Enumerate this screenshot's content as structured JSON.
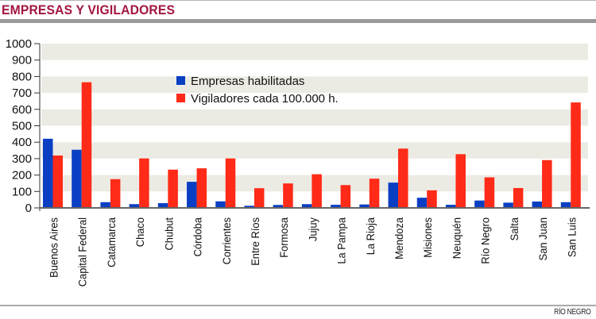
{
  "header": {
    "title": "EMPRESAS Y VIGILADORES"
  },
  "footer": {
    "source": "RÍO NEGRO"
  },
  "colors": {
    "title": "#a3163e",
    "series_blue": "#0a3fc4",
    "series_red": "#ff2a17",
    "band": "#ecebe3"
  },
  "chart_data": {
    "type": "bar",
    "title": "EMPRESAS Y VIGILADORES",
    "xlabel": "",
    "ylabel": "",
    "ylim": [
      0,
      1000
    ],
    "yticks": [
      "0",
      "100",
      "200",
      "300",
      "400",
      "500",
      "600",
      "700",
      "800",
      "900",
      "1000"
    ],
    "grid": "alternating horizontal bands",
    "legend_position": "top-center",
    "categories": [
      "Buenos Aires",
      "Capital Federal",
      "Catamarca",
      "Chaco",
      "Chubut",
      "Córdoba",
      "Corrientes",
      "Entre Ríos",
      "Formosa",
      "Jujuy",
      "La Pampa",
      "La Rioja",
      "Mendoza",
      "Misiones",
      "Neuquén",
      "Río Negro",
      "Salta",
      "San Juan",
      "San Luis"
    ],
    "series": [
      {
        "name": "Empresas habilitadas",
        "color": "#0a3fc4",
        "values": [
          421,
          354,
          35,
          23,
          29,
          159,
          40,
          13,
          18,
          23,
          19,
          21,
          154,
          62,
          19,
          45,
          32,
          39,
          35
        ]
      },
      {
        "name": "Vigiladores cada 100.000 h.",
        "color": "#ff2a17",
        "values": [
          319,
          765,
          175,
          301,
          233,
          241,
          301,
          120,
          149,
          205,
          139,
          178,
          361,
          107,
          327,
          186,
          121,
          291,
          642
        ]
      }
    ]
  }
}
